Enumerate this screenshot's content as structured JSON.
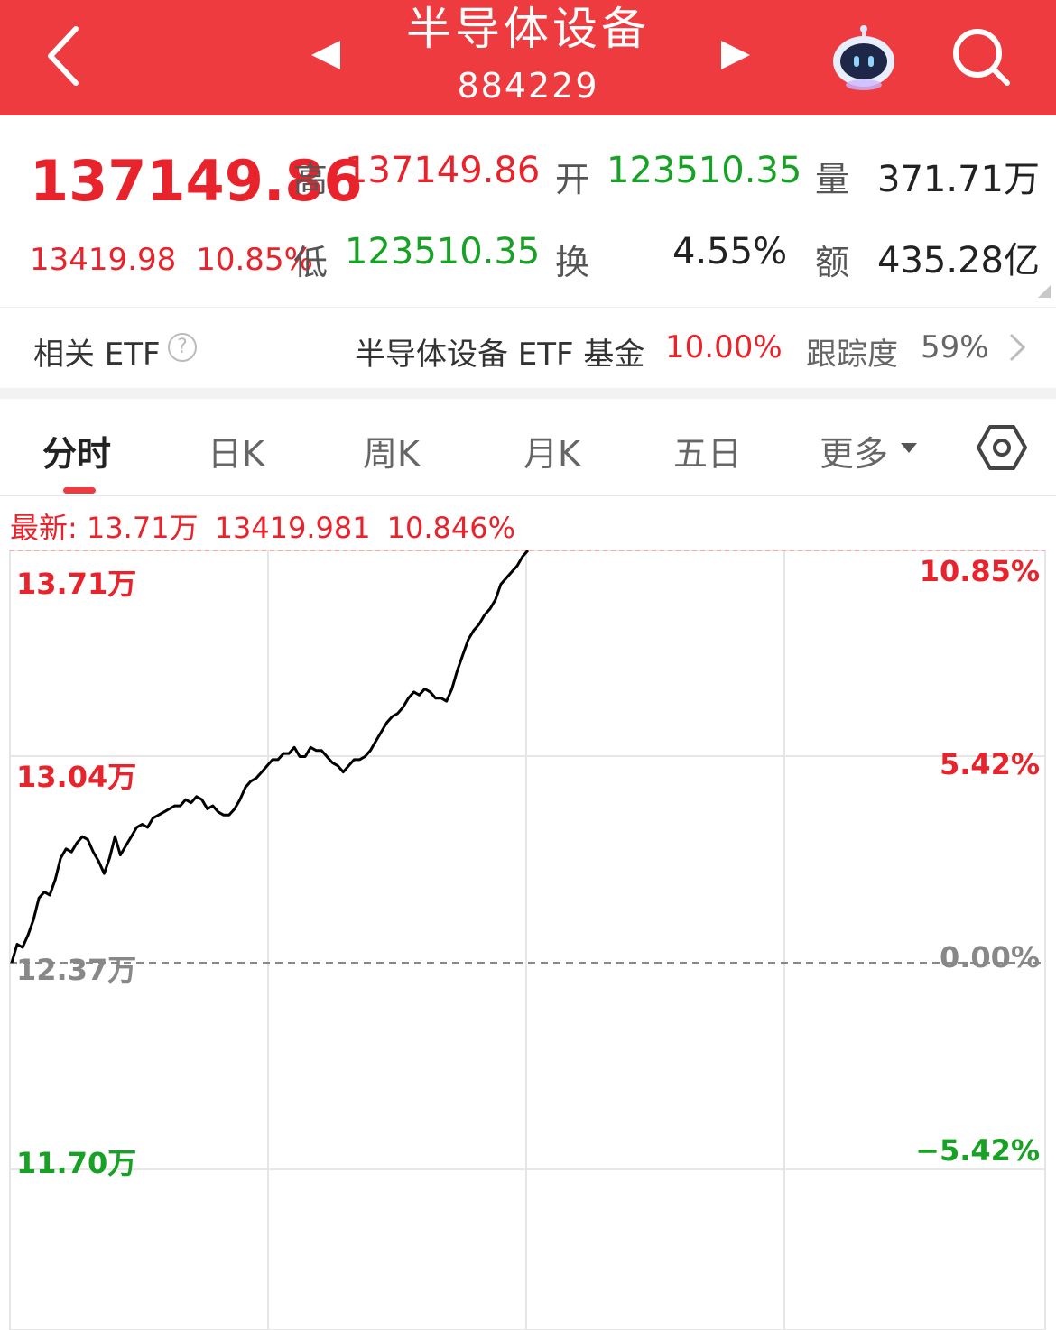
{
  "header": {
    "title": "半导体设备",
    "code": "884229",
    "bg_color": "#ee3b3f",
    "back_icon": "chevron-left-icon",
    "prev_icon": "triangle-left-icon",
    "next_icon": "triangle-right-icon",
    "assistant_icon": "robot-icon",
    "search_icon": "search-icon"
  },
  "quote": {
    "price": "137149.86",
    "change": "13419.98",
    "change_pct": "10.85%",
    "high_label": "高",
    "high": "137149.86",
    "open_label": "开",
    "open": "123510.35",
    "volume_label": "量",
    "volume": "371.71万",
    "low_label": "低",
    "low": "123510.35",
    "turnover_label": "换",
    "turnover": "4.55%",
    "amount_label": "额",
    "amount": "435.28亿",
    "up_color": "#e8232b",
    "down_color": "#17a125"
  },
  "etf": {
    "label": "相关 ETF",
    "help": "?",
    "name": "半导体设备 ETF 基金",
    "pct": "10.00%",
    "track_label": "跟踪度",
    "track_value": "59%"
  },
  "tabs": [
    "分时",
    "日K",
    "周K",
    "月K",
    "五日",
    "更多"
  ],
  "chart": {
    "latest_label": "最新: 13.71万",
    "latest_change": "13419.981",
    "latest_pct": "10.846%",
    "y_left": [
      "13.71万",
      "13.04万",
      "12.37万",
      "11.70万"
    ],
    "y_right": [
      "10.85%",
      "5.42%",
      "0.00%",
      "−5.42%"
    ]
  },
  "chart_data": {
    "type": "line",
    "title": "",
    "xlabel": "",
    "ylabel": "",
    "ylim": [
      11.7,
      13.71
    ],
    "baseline": 12.37,
    "series": [
      {
        "values": [
          12.37,
          12.43,
          12.42,
          12.46,
          12.51,
          12.58,
          12.6,
          12.59,
          12.64,
          12.71,
          12.74,
          12.73,
          12.76,
          12.78,
          12.77,
          12.73,
          12.7,
          12.66,
          12.71,
          12.78,
          12.72,
          12.75,
          12.78,
          12.81,
          12.82,
          12.81,
          12.84,
          12.85,
          12.86,
          12.87,
          12.88,
          12.88,
          12.9,
          12.89,
          12.91,
          12.9,
          12.87,
          12.88,
          12.86,
          12.85,
          12.85,
          12.87,
          12.9,
          12.94,
          12.96,
          12.97,
          12.99,
          13.01,
          13.03,
          13.03,
          13.05,
          13.05,
          13.07,
          13.04,
          13.04,
          13.07,
          13.06,
          13.06,
          13.04,
          13.02,
          13.01,
          12.99,
          13.01,
          13.03,
          13.03,
          13.04,
          13.06,
          13.09,
          13.12,
          13.15,
          13.17,
          13.18,
          13.2,
          13.23,
          13.25,
          13.24,
          13.26,
          13.25,
          13.23,
          13.23,
          13.22,
          13.26,
          13.32,
          13.37,
          13.42,
          13.45,
          13.47,
          13.5,
          13.52,
          13.55,
          13.6,
          13.62,
          13.64,
          13.66,
          13.69,
          13.71
        ]
      }
    ],
    "axis_labels_left": [
      "13.71万",
      "13.04万",
      "12.37万",
      "11.70万"
    ],
    "axis_labels_right": [
      "10.85%",
      "5.42%",
      "0.00%",
      "−5.42%"
    ],
    "grid": true,
    "line_color": "#000000"
  }
}
